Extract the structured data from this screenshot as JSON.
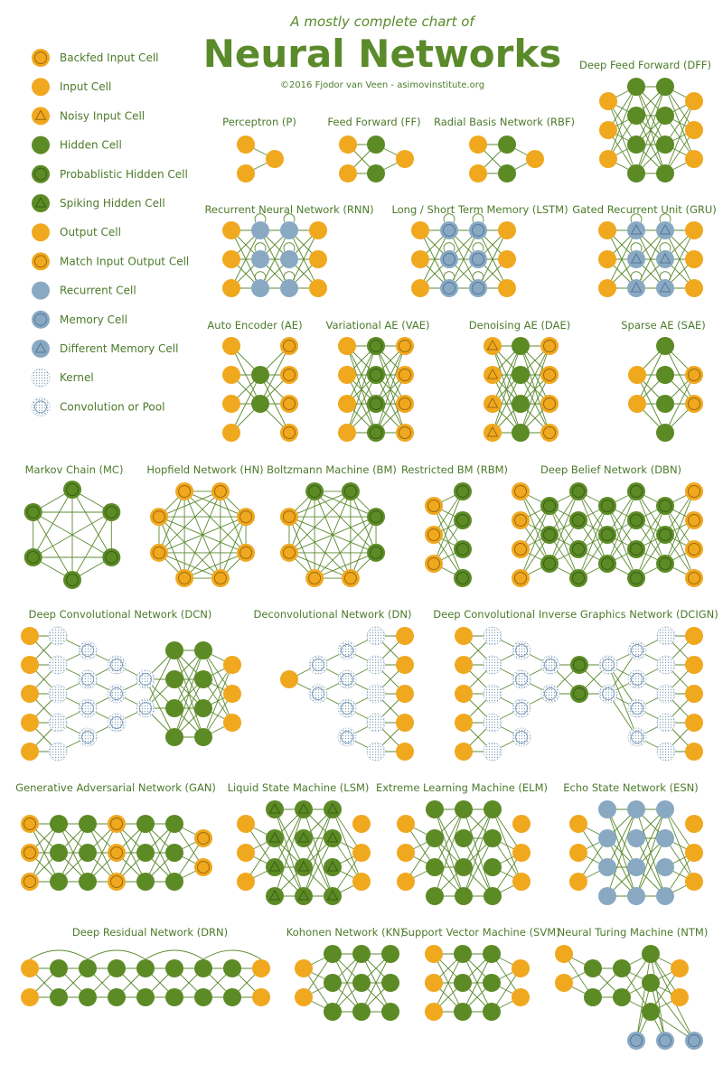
{
  "header": {
    "subtitle": "A mostly complete chart of",
    "title": "Neural Networks",
    "copyright": "©2016 Fjodor van Veen - asimovinstitute.org"
  },
  "colors": {
    "yellow": "#f0a81e",
    "green": "#5c8a25",
    "blue": "#89a9c3",
    "edge": "#5c8a30",
    "text": "#4b7a2a"
  },
  "legend": [
    {
      "label": "Backfed Input Cell",
      "cell": "backfed_input"
    },
    {
      "label": "Input Cell",
      "cell": "input"
    },
    {
      "label": "Noisy Input Cell",
      "cell": "noisy_input"
    },
    {
      "label": "Hidden Cell",
      "cell": "hidden"
    },
    {
      "label": "Probablistic Hidden Cell",
      "cell": "prob_hidden"
    },
    {
      "label": "Spiking Hidden Cell",
      "cell": "spiking_hidden"
    },
    {
      "label": "Output Cell",
      "cell": "output"
    },
    {
      "label": "Match Input Output Cell",
      "cell": "match_io"
    },
    {
      "label": "Recurrent Cell",
      "cell": "recurrent"
    },
    {
      "label": "Memory Cell",
      "cell": "memory"
    },
    {
      "label": "Different Memory Cell",
      "cell": "diff_memory"
    },
    {
      "label": "Kernel",
      "cell": "kernel"
    },
    {
      "label": "Convolution or Pool",
      "cell": "conv"
    }
  ],
  "networks": [
    {
      "title": "Perceptron (P)"
    },
    {
      "title": "Feed Forward (FF)"
    },
    {
      "title": "Radial Basis Network (RBF)"
    },
    {
      "title": "Deep Feed Forward (DFF)"
    },
    {
      "title": "Recurrent Neural Network (RNN)"
    },
    {
      "title": "Long / Short Term Memory (LSTM)"
    },
    {
      "title": "Gated Recurrent Unit (GRU)"
    },
    {
      "title": "Auto Encoder (AE)"
    },
    {
      "title": "Variational AE (VAE)"
    },
    {
      "title": "Denoising AE (DAE)"
    },
    {
      "title": "Sparse AE (SAE)"
    },
    {
      "title": "Markov Chain (MC)"
    },
    {
      "title": "Hopfield Network (HN)"
    },
    {
      "title": "Boltzmann Machine (BM)"
    },
    {
      "title": "Restricted BM (RBM)"
    },
    {
      "title": "Deep Belief Network (DBN)"
    },
    {
      "title": "Deep Convolutional Network (DCN)"
    },
    {
      "title": "Deconvolutional Network (DN)"
    },
    {
      "title": "Deep Convolutional Inverse Graphics Network (DCIGN)"
    },
    {
      "title": "Generative Adversarial Network (GAN)"
    },
    {
      "title": "Liquid State Machine (LSM)"
    },
    {
      "title": "Extreme Learning Machine (ELM)"
    },
    {
      "title": "Echo State Network (ESN)"
    },
    {
      "title": "Deep Residual Network (DRN)"
    },
    {
      "title": "Kohonen Network (KN)"
    },
    {
      "title": "Support Vector Machine (SVM)"
    },
    {
      "title": "Neural Turing Machine (NTM)"
    }
  ]
}
